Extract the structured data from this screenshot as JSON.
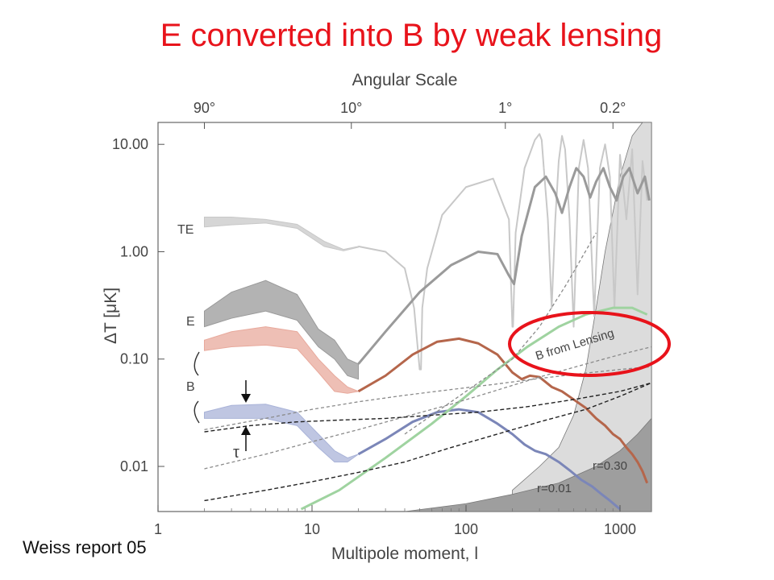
{
  "slide": {
    "title": "E converted into B by weak lensing",
    "credit": "Weiss report 05"
  },
  "chart_data": {
    "type": "line",
    "title": "",
    "xlabel": "Multipole moment, l",
    "ylabel": "ΔT [μK]",
    "top_axis_label": "Angular Scale",
    "x_scale": "log",
    "y_scale": "log",
    "xlim": [
      1,
      1600
    ],
    "ylim": [
      0.0038,
      16
    ],
    "x_ticks": [
      {
        "v": 1,
        "label": "1"
      },
      {
        "v": 10,
        "label": "10"
      },
      {
        "v": 100,
        "label": "100"
      },
      {
        "v": 1000,
        "label": "1000"
      }
    ],
    "y_ticks": [
      {
        "v": 10,
        "label": "10.00"
      },
      {
        "v": 1,
        "label": "1.00"
      },
      {
        "v": 0.1,
        "label": "0.10"
      },
      {
        "v": 0.01,
        "label": "0.01"
      }
    ],
    "top_ticks": [
      {
        "v": 2,
        "label": "90°"
      },
      {
        "v": 18,
        "label": "10°"
      },
      {
        "v": 180,
        "label": "1°"
      },
      {
        "v": 900,
        "label": "0.2°"
      }
    ],
    "grid": false,
    "legend": "none",
    "colors": {
      "te": "#c8c8c8",
      "e": "#9a9a9a",
      "b": "#e8a99c",
      "b_small": "#a9b3d8",
      "lensing": "#9fd3a0",
      "r030": "#b5664b",
      "r001": "#7b86b8",
      "highlight": "#e8131b"
    },
    "series": [
      {
        "name": "TE",
        "style": "band",
        "x": [
          2,
          3,
          5,
          8,
          12,
          16,
          20
        ],
        "upper": [
          2.1,
          2.1,
          2.0,
          1.8,
          1.25,
          1.05,
          1.12
        ],
        "lower": [
          1.7,
          1.78,
          1.85,
          1.65,
          1.12,
          1.02,
          1.1
        ]
      },
      {
        "name": "TE",
        "style": "line",
        "x": [
          20,
          30,
          40,
          46,
          50,
          51,
          52,
          56,
          70,
          100,
          150,
          190,
          200,
          202,
          210,
          240,
          280,
          300,
          310,
          320
        ],
        "y": [
          1.12,
          1.0,
          0.7,
          0.3,
          0.08,
          0.08,
          0.3,
          0.7,
          2.2,
          4.0,
          4.8,
          2.0,
          0.2,
          0.2,
          1.5,
          6.0,
          11.0,
          12.5,
          11.0,
          6.0
        ]
      },
      {
        "name": "TE",
        "style": "line",
        "x": [
          320,
          340,
          360,
          380,
          400,
          420,
          440,
          470,
          500,
          540,
          580,
          620,
          680,
          740,
          800,
          860,
          920,
          1000,
          1100,
          1200,
          1300,
          1400,
          1500
        ],
        "y": [
          6.0,
          2.0,
          0.3,
          2.0,
          7.0,
          12.0,
          9.0,
          2.0,
          0.2,
          6.0,
          11.0,
          6.0,
          0.25,
          6.0,
          10.0,
          5.0,
          0.3,
          8.0,
          2.0,
          9.0,
          0.4,
          7.0,
          3.0
        ]
      },
      {
        "name": "E",
        "style": "band",
        "x": [
          2,
          3,
          5,
          8,
          11,
          14,
          17,
          20
        ],
        "upper": [
          0.28,
          0.42,
          0.54,
          0.4,
          0.19,
          0.15,
          0.1,
          0.09
        ],
        "lower": [
          0.2,
          0.24,
          0.28,
          0.23,
          0.13,
          0.1,
          0.07,
          0.065
        ]
      },
      {
        "name": "E",
        "style": "line",
        "x": [
          20,
          30,
          50,
          80,
          120,
          160,
          190,
          205,
          230,
          280,
          330,
          380,
          420,
          470,
          520,
          580,
          640,
          700,
          780,
          860,
          950,
          1050,
          1150,
          1300,
          1450,
          1550
        ],
        "y": [
          0.09,
          0.18,
          0.42,
          0.75,
          1.0,
          0.95,
          0.6,
          0.5,
          1.4,
          4.0,
          5.0,
          3.5,
          2.3,
          4.0,
          6.0,
          5.0,
          3.2,
          4.5,
          6.0,
          4.0,
          3.0,
          5.0,
          6.0,
          3.5,
          5.0,
          3.0
        ]
      },
      {
        "name": "B",
        "style": "band",
        "x": [
          2,
          3,
          5,
          8,
          11,
          14,
          17,
          20
        ],
        "upper": [
          0.15,
          0.18,
          0.2,
          0.18,
          0.1,
          0.07,
          0.055,
          0.05
        ],
        "lower": [
          0.12,
          0.13,
          0.135,
          0.125,
          0.075,
          0.05,
          0.048,
          0.05
        ]
      },
      {
        "name": "r=0.30",
        "style": "line",
        "x": [
          20,
          30,
          45,
          65,
          90,
          120,
          160,
          200,
          230,
          260,
          300,
          360,
          420,
          500,
          600,
          700,
          800,
          900,
          1000,
          1100,
          1200,
          1300,
          1400,
          1500
        ],
        "y": [
          0.05,
          0.07,
          0.11,
          0.145,
          0.155,
          0.14,
          0.11,
          0.075,
          0.065,
          0.07,
          0.068,
          0.055,
          0.05,
          0.042,
          0.035,
          0.028,
          0.024,
          0.02,
          0.018,
          0.015,
          0.013,
          0.011,
          0.009,
          0.007
        ]
      },
      {
        "name": "B",
        "style": "band",
        "x": [
          2,
          3,
          5,
          8,
          11,
          14,
          17,
          20
        ],
        "upper": [
          0.032,
          0.037,
          0.038,
          0.032,
          0.02,
          0.014,
          0.012,
          0.013
        ],
        "lower": [
          0.028,
          0.028,
          0.028,
          0.024,
          0.015,
          0.011,
          0.011,
          0.013
        ]
      },
      {
        "name": "r=0.01",
        "style": "line",
        "x": [
          20,
          30,
          45,
          65,
          90,
          120,
          160,
          200,
          240,
          280,
          330,
          400,
          480,
          560,
          660,
          760,
          860,
          960,
          1000
        ],
        "y": [
          0.013,
          0.018,
          0.026,
          0.032,
          0.034,
          0.032,
          0.025,
          0.02,
          0.016,
          0.014,
          0.013,
          0.011,
          0.009,
          0.0075,
          0.0065,
          0.0055,
          0.0048,
          0.0042,
          0.004
        ]
      },
      {
        "name": "B from Lensing",
        "style": "line",
        "x": [
          8.5,
          15,
          30,
          60,
          100,
          160,
          250,
          400,
          600,
          900,
          1200,
          1500
        ],
        "y": [
          0.004,
          0.006,
          0.012,
          0.025,
          0.045,
          0.08,
          0.13,
          0.2,
          0.26,
          0.3,
          0.3,
          0.26
        ]
      },
      {
        "name": "",
        "style": "dashed-gray",
        "x": [
          2,
          5,
          10,
          20,
          40,
          80,
          150,
          300,
          600,
          1000,
          1600
        ],
        "y": [
          0.0095,
          0.013,
          0.017,
          0.022,
          0.029,
          0.038,
          0.05,
          0.068,
          0.09,
          0.11,
          0.13
        ]
      },
      {
        "name": "",
        "style": "dashed-gray",
        "x": [
          2,
          5,
          10,
          20,
          40,
          80,
          150,
          300,
          600,
          1000,
          1600
        ],
        "y": [
          0.022,
          0.028,
          0.034,
          0.04,
          0.046,
          0.052,
          0.058,
          0.066,
          0.074,
          0.08,
          0.085
        ]
      },
      {
        "name": "",
        "style": "dashed-dark",
        "x": [
          2,
          4,
          8,
          15,
          30,
          60,
          120,
          250,
          500,
          1000,
          1600
        ],
        "y": [
          0.021,
          0.024,
          0.026,
          0.027,
          0.028,
          0.03,
          0.032,
          0.036,
          0.042,
          0.05,
          0.06
        ]
      },
      {
        "name": "",
        "style": "dashed-dark",
        "x": [
          2,
          5,
          10,
          20,
          40,
          80,
          160,
          300,
          600,
          1000,
          1600
        ],
        "y": [
          0.0048,
          0.006,
          0.0072,
          0.0088,
          0.011,
          0.015,
          0.02,
          0.026,
          0.034,
          0.045,
          0.06
        ]
      },
      {
        "name": "",
        "style": "dashed-gray",
        "x": [
          40,
          70,
          120,
          200,
          300,
          450,
          700
        ],
        "y": [
          0.02,
          0.035,
          0.06,
          0.1,
          0.2,
          0.5,
          1.5
        ]
      }
    ],
    "shaded_regions": [
      {
        "x": [
          200,
          300,
          400,
          500,
          600,
          700,
          800,
          1000,
          1200,
          1400,
          1600
        ],
        "upper": [
          0.006,
          0.01,
          0.015,
          0.03,
          0.08,
          0.3,
          1.0,
          5.0,
          12.0,
          16.0,
          16.0
        ]
      },
      {
        "x": [
          40,
          100,
          200,
          400,
          700,
          1000,
          1300,
          1600
        ],
        "upper": [
          0.0038,
          0.0045,
          0.0055,
          0.007,
          0.01,
          0.014,
          0.02,
          0.028
        ]
      }
    ],
    "annotations": {
      "te": "TE",
      "e": "E",
      "b": "B",
      "tau": "τ",
      "lensing": "B from Lensing",
      "r030": "r=0.30",
      "r001": "r=0.01"
    }
  }
}
